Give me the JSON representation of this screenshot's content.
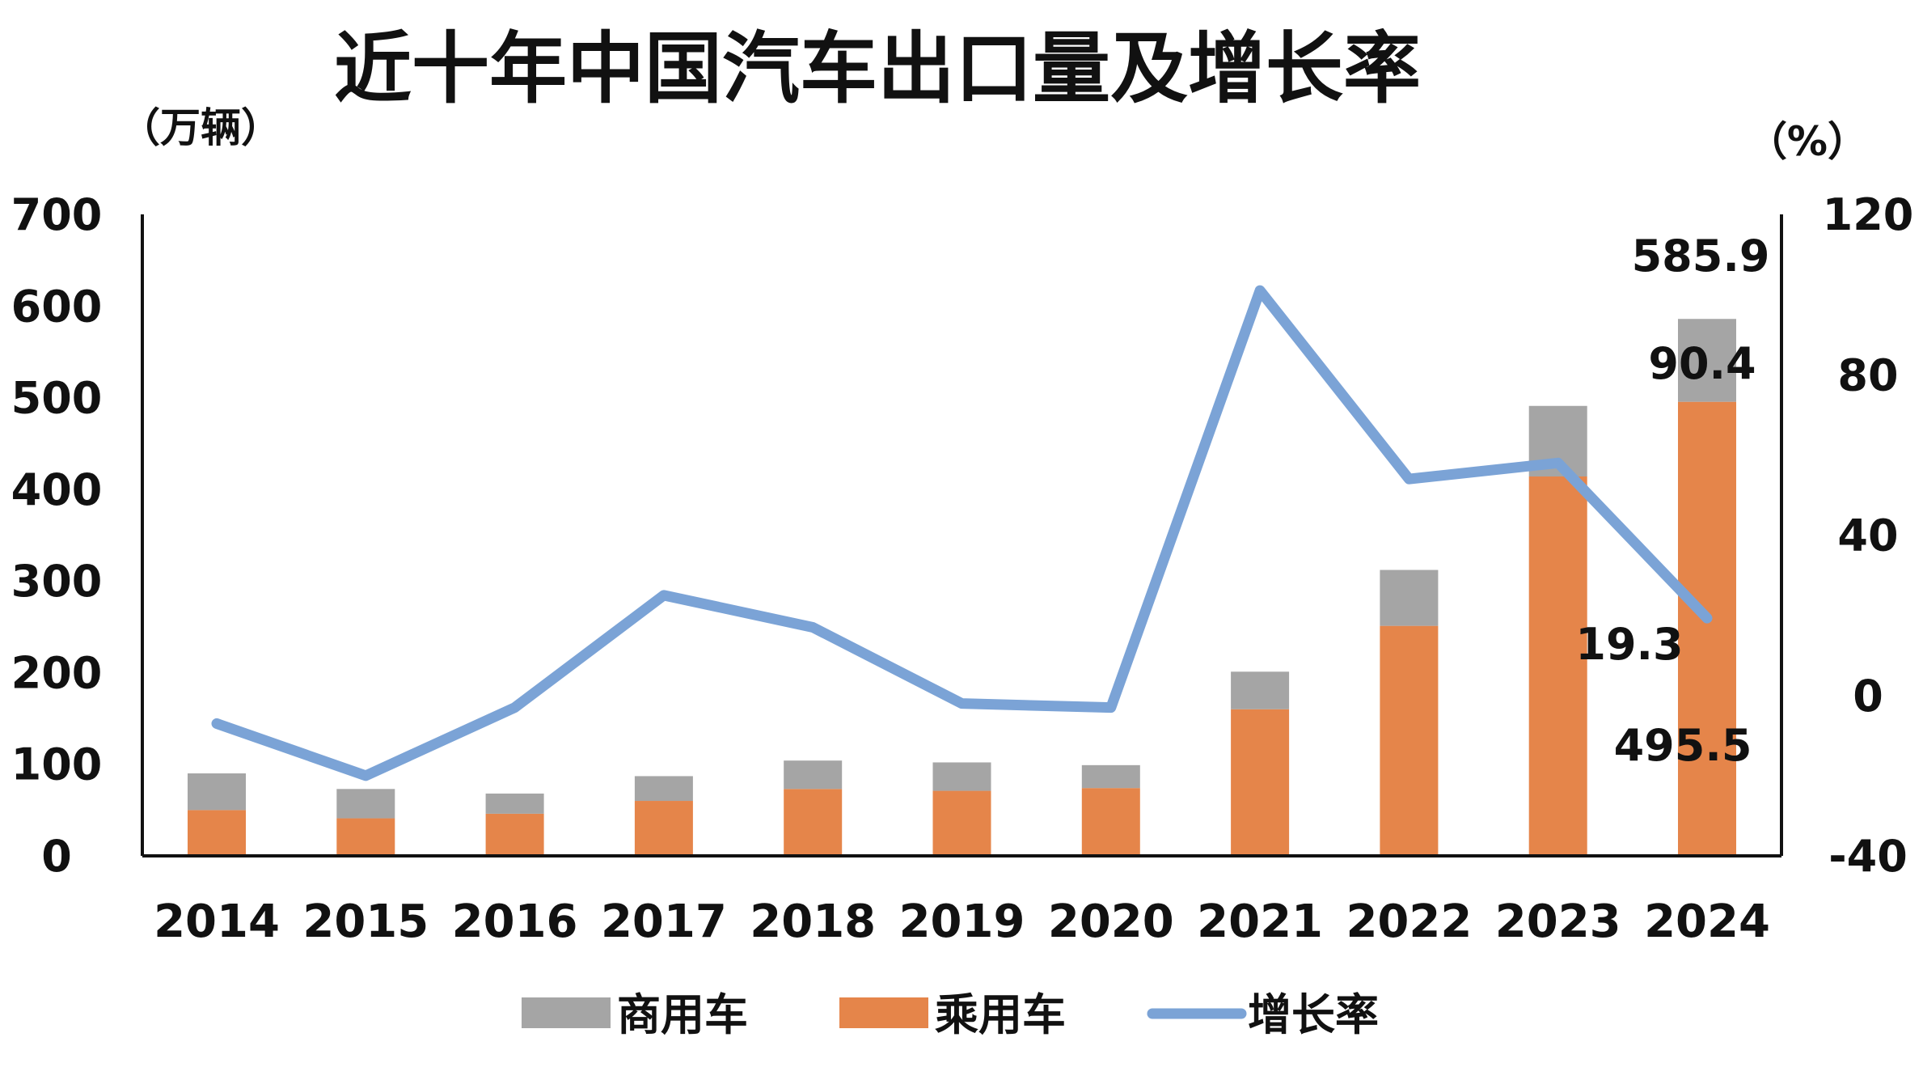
{
  "chart_data": {
    "type": "bar",
    "stacked": true,
    "title": "近十年中国汽车出口量及增长率",
    "left_unit": "（万辆）",
    "right_unit": "（%）",
    "categories": [
      "2014",
      "2015",
      "2016",
      "2017",
      "2018",
      "2019",
      "2020",
      "2021",
      "2022",
      "2023",
      "2024"
    ],
    "series": [
      {
        "name": "乘用车",
        "kind": "bar",
        "axis": "left",
        "color": "#e5854a",
        "values": [
          50,
          41,
          46,
          60,
          73,
          71,
          74,
          160,
          251,
          414,
          495.5
        ]
      },
      {
        "name": "商用车",
        "kind": "bar",
        "axis": "left",
        "color": "#a5a5a5",
        "values": [
          40,
          32,
          22,
          27,
          31,
          31,
          25,
          41,
          61,
          77,
          90.4
        ]
      },
      {
        "name": "增长率",
        "kind": "line",
        "axis": "right",
        "color": "#7ba3d6",
        "values": [
          -7,
          -20,
          -3,
          25,
          17,
          -2,
          -3,
          101,
          54,
          58,
          19.3
        ]
      }
    ],
    "ylim_left": [
      0,
      700
    ],
    "yticks_left": [
      "0",
      "100",
      "200",
      "300",
      "400",
      "500",
      "600",
      "700"
    ],
    "ylim_right": [
      -40,
      120
    ],
    "yticks_right": [
      "-40",
      "0",
      "40",
      "80",
      "120"
    ],
    "data_labels": {
      "total_2024": "585.9",
      "commercial_2024": "90.4",
      "growth_2024": "19.3",
      "passenger_2024": "495.5"
    },
    "legend": {
      "position": "bottom",
      "items": [
        {
          "label": "商用车",
          "swatch": "bar",
          "color": "#a5a5a5"
        },
        {
          "label": "乘用车",
          "swatch": "bar",
          "color": "#e5854a"
        },
        {
          "label": "增长率",
          "swatch": "line",
          "color": "#7ba3d6"
        }
      ]
    },
    "grid": false
  }
}
